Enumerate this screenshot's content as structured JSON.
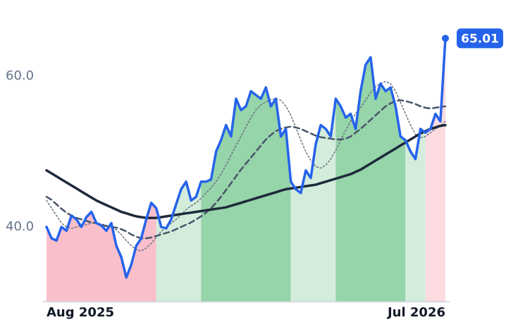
{
  "chart_data": {
    "type": "line",
    "categories": [
      "Aug 2025",
      null,
      null,
      null,
      null,
      null,
      null,
      null,
      null,
      null,
      null,
      null,
      null,
      null,
      null,
      null,
      null,
      null,
      null,
      null,
      null,
      null,
      null,
      null,
      null,
      null,
      null,
      null,
      null,
      null,
      null,
      null,
      null,
      null,
      null,
      null,
      null,
      null,
      null,
      null,
      null,
      null,
      null,
      null,
      null,
      null,
      null,
      null,
      null,
      null,
      null,
      null,
      null,
      null,
      null,
      null,
      null,
      null,
      null,
      null,
      null,
      null,
      null,
      null,
      null,
      null,
      null,
      null,
      null,
      null,
      null,
      null,
      null,
      null,
      null,
      null,
      null,
      null,
      null,
      null,
      "Jul 2026"
    ],
    "series": [
      {
        "color": "#2563eb",
        "width": 3.5,
        "dash": "none",
        "values": [
          40,
          38.5,
          38.2,
          40,
          39.5,
          41.5,
          41,
          40,
          41.3,
          42,
          40.5,
          40.2,
          39.5,
          40.5,
          37.5,
          36,
          33.3,
          35,
          37.5,
          38.5,
          41,
          43.2,
          42.5,
          40,
          39.8,
          41,
          43,
          45,
          46,
          43.5,
          44,
          46,
          46,
          46.3,
          50,
          51.5,
          53.5,
          52,
          57,
          55.5,
          56,
          58,
          57.5,
          57,
          58.5,
          56,
          57,
          52,
          53,
          46,
          45,
          44.5,
          47.5,
          46.5,
          51,
          53.5,
          53,
          52,
          57,
          56,
          54.5,
          55,
          53,
          58,
          61.5,
          62.5,
          57,
          59,
          58,
          58.5,
          56,
          52,
          51.5,
          50,
          49,
          53,
          52.5,
          53,
          55,
          54,
          65.01
        ]
      },
      {
        "color": "#1e293b",
        "width": 3.5,
        "dash": "none",
        "values": [
          47.5,
          47.1,
          46.7,
          46.3,
          45.9,
          45.5,
          45.1,
          44.7,
          44.3,
          43.9,
          43.5,
          43.2,
          42.9,
          42.6,
          42.3,
          42.0,
          41.8,
          41.6,
          41.4,
          41.3,
          41.2,
          41.2,
          41.2,
          41.3,
          41.4,
          41.5,
          41.6,
          41.7,
          41.8,
          41.9,
          42.0,
          42.1,
          42.2,
          42.3,
          42.4,
          42.5,
          42.6,
          42.8,
          43.0,
          43.2,
          43.4,
          43.6,
          43.8,
          44.0,
          44.2,
          44.4,
          44.6,
          44.8,
          45.0,
          45.1,
          45.2,
          45.3,
          45.4,
          45.5,
          45.6,
          45.8,
          46.0,
          46.2,
          46.4,
          46.6,
          46.8,
          47.0,
          47.3,
          47.6,
          48.0,
          48.4,
          48.8,
          49.2,
          49.6,
          50.0,
          50.4,
          50.8,
          51.2,
          51.6,
          52.0,
          52.4,
          52.7,
          53.0,
          53.2,
          53.4,
          53.5
        ]
      },
      {
        "color": "#475569",
        "width": 2.5,
        "dash": "8 5",
        "values": [
          44.0,
          43.6,
          43.0,
          42.4,
          41.9,
          41.5,
          41.2,
          41.0,
          40.8,
          40.6,
          40.5,
          40.3,
          40.1,
          40.0,
          39.9,
          39.7,
          39.4,
          39.0,
          38.7,
          38.5,
          38.5,
          38.6,
          38.8,
          39.0,
          39.2,
          39.4,
          39.7,
          40.0,
          40.3,
          40.6,
          41.0,
          41.4,
          41.9,
          42.5,
          43.2,
          44.0,
          44.9,
          45.8,
          46.7,
          47.6,
          48.4,
          49.2,
          50.0,
          50.8,
          51.6,
          52.2,
          52.7,
          53.0,
          53.2,
          53.3,
          53.2,
          53.0,
          52.7,
          52.4,
          52.1,
          51.9,
          51.8,
          51.7,
          51.6,
          51.6,
          51.7,
          52.0,
          52.5,
          53.0,
          53.6,
          54.2,
          54.8,
          55.4,
          56.0,
          56.4,
          56.7,
          56.8,
          56.7,
          56.5,
          56.3,
          56.0,
          55.8,
          55.7,
          55.8,
          55.9,
          56.0
        ]
      },
      {
        "color": "#6b7280",
        "width": 1.5,
        "dash": "2 3",
        "values": [
          43.5,
          42.5,
          41.5,
          40.5,
          40.0,
          39.8,
          40.0,
          40.2,
          40.3,
          40.5,
          40.5,
          40.4,
          40.2,
          40.0,
          39.6,
          39.0,
          38.2,
          37.5,
          37.0,
          36.8,
          37.2,
          37.8,
          38.6,
          39.4,
          40.0,
          40.5,
          41.0,
          41.6,
          42.3,
          42.8,
          43.2,
          43.8,
          44.5,
          45.2,
          46.0,
          47.0,
          48.2,
          49.5,
          50.8,
          52.0,
          53.3,
          54.5,
          55.5,
          56.2,
          56.6,
          56.9,
          57.0,
          56.8,
          56.0,
          54.8,
          53.2,
          51.5,
          50.0,
          48.8,
          48.0,
          47.8,
          48.2,
          49.0,
          50.2,
          51.5,
          52.8,
          54.0,
          55.0,
          55.8,
          56.8,
          57.8,
          58.6,
          59.0,
          59.3,
          59.0,
          58.0,
          56.5,
          55.0,
          53.5,
          52.3,
          51.8,
          52.0,
          52.5,
          53.0,
          53.4,
          54.0
        ]
      }
    ],
    "bands": [
      {
        "from": 0,
        "to": 22,
        "color": "#f9bfca"
      },
      {
        "from": 22,
        "to": 31,
        "color": "#d3ecdb"
      },
      {
        "from": 31,
        "to": 49,
        "color": "#96d4aa"
      },
      {
        "from": 49,
        "to": 58,
        "color": "#d3ecdb"
      },
      {
        "from": 58,
        "to": 72,
        "color": "#96d4aa"
      },
      {
        "from": 72,
        "to": 76,
        "color": "#d3ecdb"
      },
      {
        "from": 76,
        "to": 80,
        "color": "#fcdbe1"
      }
    ],
    "ylim": [
      30,
      70
    ],
    "yticks": [
      {
        "value": 40,
        "label": "40.0"
      },
      {
        "value": 60,
        "label": "60.0"
      }
    ]
  }
}
